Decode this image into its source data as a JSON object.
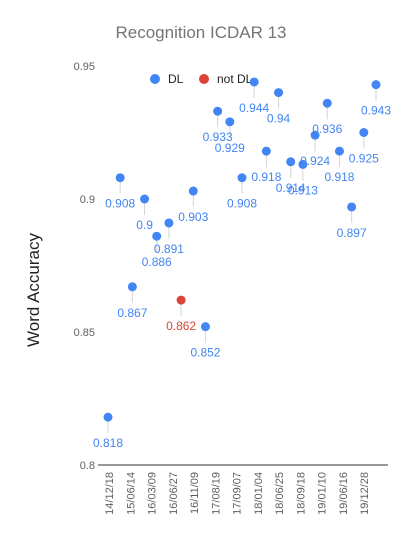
{
  "chart_data": {
    "type": "scatter",
    "title": "Recognition ICDAR 13",
    "ylabel": "Word Accuracy",
    "xlabel": "",
    "ylim": [
      0.8,
      0.95
    ],
    "yticks": [
      "0.95",
      "0.9",
      "0.85",
      "0.8"
    ],
    "grid": false,
    "legend_position": "top",
    "series": [
      {
        "name": "DL",
        "color": "#4285f4"
      },
      {
        "name": "not DL",
        "color": "#db4437"
      }
    ],
    "x_tick_labels": [
      "14/12/18",
      "15/06/14",
      "16/03/09",
      "16/06/27",
      "16/11/09",
      "17/08/19",
      "17/09/07",
      "18/01/04",
      "18/06/25",
      "18/09/18",
      "19/01/10",
      "19/06/16",
      "19/12/28"
    ],
    "points": [
      {
        "x": "14/12/18",
        "y": 0.818,
        "label": "0.818",
        "series": "DL"
      },
      {
        "x": "",
        "y": 0.908,
        "label": "0.908",
        "series": "DL"
      },
      {
        "x": "15/06/14",
        "y": 0.867,
        "label": "0.867",
        "series": "DL"
      },
      {
        "x": "",
        "y": 0.9,
        "label": "0.9",
        "series": "DL"
      },
      {
        "x": "16/03/09",
        "y": 0.886,
        "label": "0.886",
        "series": "DL"
      },
      {
        "x": "",
        "y": 0.891,
        "label": "0.891",
        "series": "DL"
      },
      {
        "x": "16/06/27",
        "y": 0.862,
        "label": "0.862",
        "series": "not DL"
      },
      {
        "x": "",
        "y": 0.903,
        "label": "0.903",
        "series": "DL"
      },
      {
        "x": "16/11/09",
        "y": 0.852,
        "label": "0.852",
        "series": "DL"
      },
      {
        "x": "",
        "y": 0.933,
        "label": "0.933",
        "series": "DL"
      },
      {
        "x": "17/08/19",
        "y": 0.929,
        "label": "0.929",
        "series": "DL"
      },
      {
        "x": "",
        "y": 0.908,
        "label": "0.908",
        "series": "DL"
      },
      {
        "x": "17/09/07",
        "y": 0.944,
        "label": "0.944",
        "series": "DL"
      },
      {
        "x": "",
        "y": 0.918,
        "label": "0.918",
        "series": "DL"
      },
      {
        "x": "18/01/04",
        "y": 0.94,
        "label": "0.94",
        "series": "DL"
      },
      {
        "x": "",
        "y": 0.914,
        "label": "0.914",
        "series": "DL"
      },
      {
        "x": "18/06/25",
        "y": 0.913,
        "label": "0.913",
        "series": "DL"
      },
      {
        "x": "",
        "y": 0.924,
        "label": "0.924",
        "series": "DL"
      },
      {
        "x": "18/09/18",
        "y": 0.936,
        "label": "0.936",
        "series": "DL"
      },
      {
        "x": "",
        "y": 0.918,
        "label": "0.918",
        "series": "DL"
      },
      {
        "x": "19/01/10",
        "y": 0.897,
        "label": "0.897",
        "series": "DL"
      },
      {
        "x": "",
        "y": 0.925,
        "label": "0.925",
        "series": "DL"
      },
      {
        "x": "19/06/16",
        "y": 0.943,
        "label": "0.943",
        "series": "DL"
      }
    ]
  }
}
